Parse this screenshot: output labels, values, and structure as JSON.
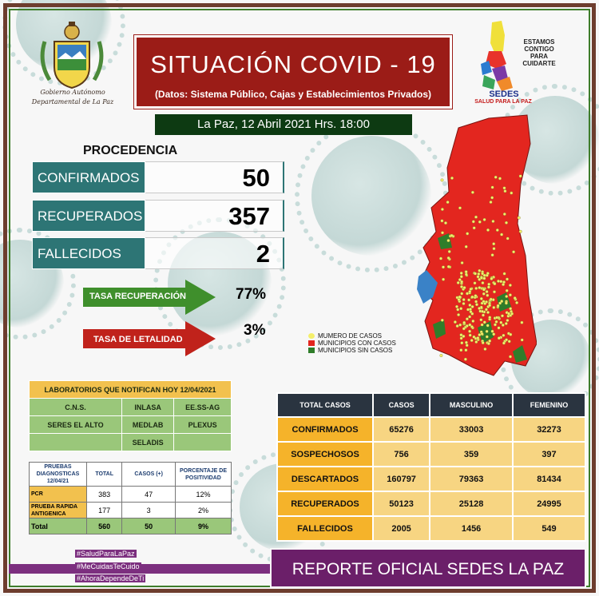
{
  "header": {
    "gov_name_line1": "Gobierno Autónomo",
    "gov_name_line2": "Departamental de La Paz",
    "title": "SITUACIÓN  COVID - 19",
    "subtitle": "(Datos: Sistema Público, Cajas y Establecimientos Privados)",
    "date_line": "La Paz,  12  Abril  2021     Hrs. 18:00"
  },
  "logo": {
    "slogan_line1": "ESTAMOS",
    "slogan_line2": "CONTIGO",
    "slogan_line3": "PARA",
    "slogan_line4": "CUIDARTE",
    "sedes": "SEDES",
    "salud": "SALUD PARA LA PAZ"
  },
  "procedencia": {
    "title": "PROCEDENCIA",
    "items": [
      {
        "label": "CONFIRMADOS",
        "value": "50"
      },
      {
        "label": "RECUPERADOS",
        "value": "357"
      },
      {
        "label": "FALLECIDOS",
        "value": "2"
      }
    ]
  },
  "rates": {
    "recovery_label": "TASA RECUPERACIÓN",
    "recovery_value": "77%",
    "lethality_label": "TASA  DE LETALIDAD",
    "lethality_value": "3%"
  },
  "map_legend": [
    {
      "label": "MUMERO DE CASOS",
      "color": "#f4ef6a"
    },
    {
      "label": "MUNICIPIOS CON CASOS",
      "color": "#e3261f"
    },
    {
      "label": "MUNICIPIOS SIN CASOS",
      "color": "#2f7d2a"
    }
  ],
  "labs": {
    "header": "LABORATORIOS QUE NOTIFICAN HOY 12/04/2021",
    "rows": [
      [
        "C.N.S.",
        "INLASA",
        "EE.SS-AG"
      ],
      [
        "SERES EL ALTO",
        "MEDLAB",
        "PLEXUS"
      ],
      [
        "",
        "SELADIS",
        ""
      ]
    ]
  },
  "tests": {
    "headers": [
      "PRUEBAS DIAGNOSTICAS 12/04/21",
      "TOTAL",
      "CASOS (+)",
      "PORCENTAJE DE POSITIVIDAD"
    ],
    "rows": [
      [
        "PCR",
        "383",
        "47",
        "12%"
      ],
      [
        "PRUEBA RAPIDA ANTIGENICA",
        "177",
        "3",
        "2%"
      ]
    ],
    "total": [
      "Total",
      "560",
      "50",
      "9%"
    ]
  },
  "main_table": {
    "headers": [
      "TOTAL CASOS",
      "CASOS",
      "MASCULINO",
      "FEMENINO"
    ],
    "rows": [
      [
        "CONFIRMADOS",
        "65276",
        "33003",
        "32273"
      ],
      [
        "SOSPECHOSOS",
        "756",
        "359",
        "397"
      ],
      [
        "DESCARTADOS",
        "160797",
        "79363",
        "81434"
      ],
      [
        "RECUPERADOS",
        "50123",
        "25128",
        "24995"
      ],
      [
        "FALLECIDOS",
        "2005",
        "1456",
        "549"
      ]
    ]
  },
  "footer": {
    "hashtags": [
      "#SaludParaLaPaz",
      "#MeCuidasTeCuido",
      "#AhoraDependeDeTi"
    ],
    "report": "REPORTE OFICIAL SEDES LA PAZ"
  }
}
